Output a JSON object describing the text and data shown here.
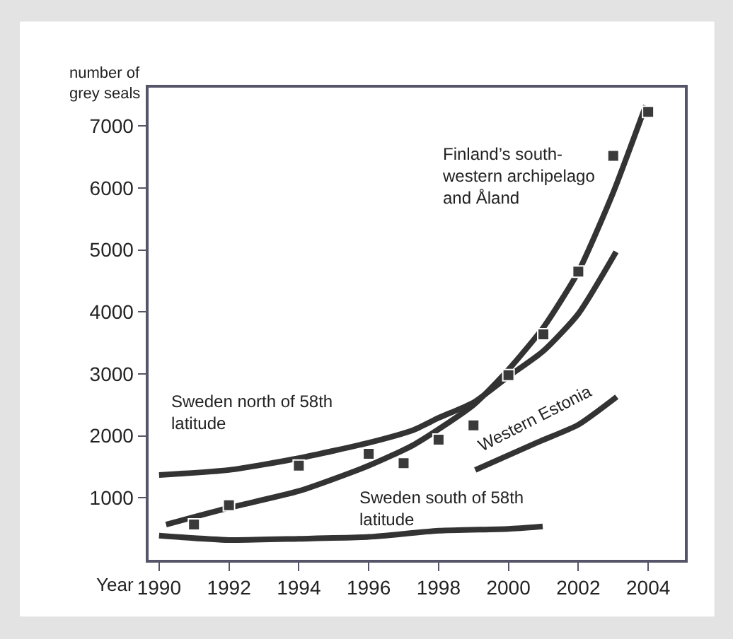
{
  "chart_data": {
    "type": "line",
    "xlabel": "Year",
    "ylabel": "number of\ngrey seals",
    "xlim": [
      1989.7,
      2005.05
    ],
    "ylim": [
      0,
      7620
    ],
    "xticks": [
      1990,
      1992,
      1994,
      1996,
      1998,
      2000,
      2002,
      2004
    ],
    "yticks": [
      1000,
      2000,
      3000,
      4000,
      5000,
      6000,
      7000
    ],
    "line_style": "solid",
    "series": [
      {
        "type": "scatter",
        "marker": "square",
        "color": "#3a3a3a",
        "x": [
          1991,
          1992,
          1994,
          1996,
          1997,
          1998,
          1999,
          2000,
          2001,
          2002,
          2003,
          2004
        ],
        "values": [
          570,
          880,
          1520,
          1710,
          1560,
          1940,
          2170,
          2980,
          3640,
          4650,
          6520,
          7230
        ]
      },
      {
        "color": "#333333",
        "x": [
          1990.2,
          1992,
          1994,
          1996,
          1997.3,
          1999,
          2000,
          2001,
          2002,
          2003,
          2003.93
        ],
        "values": [
          570,
          840,
          1110,
          1520,
          1860,
          2500,
          3070,
          3750,
          4650,
          5930,
          7330
        ]
      },
      {
        "color": "#333333",
        "x": [
          1990,
          1992,
          1994,
          1996,
          1997.3,
          1998,
          1999,
          2000,
          2001,
          2002,
          2003.08
        ],
        "values": [
          1370,
          1450,
          1640,
          1890,
          2100,
          2290,
          2540,
          2960,
          3370,
          3970,
          4970
        ]
      },
      {
        "color": "#333333",
        "x": [
          1999.05,
          2000.85,
          2002,
          2003.1
        ],
        "values": [
          1450,
          1900,
          2180,
          2630
        ]
      },
      {
        "color": "#333333",
        "x": [
          1990,
          1992,
          1994,
          1996,
          1998,
          2000,
          2000.98
        ],
        "values": [
          390,
          320,
          340,
          370,
          470,
          500,
          540
        ]
      }
    ],
    "annotations": [
      "Finland’s south-\nwestern archipelago\nand Åland",
      "Sweden north of 58th\nlatitude",
      "Western Estonia",
      "Sweden south of 58th\nlatitude"
    ]
  }
}
